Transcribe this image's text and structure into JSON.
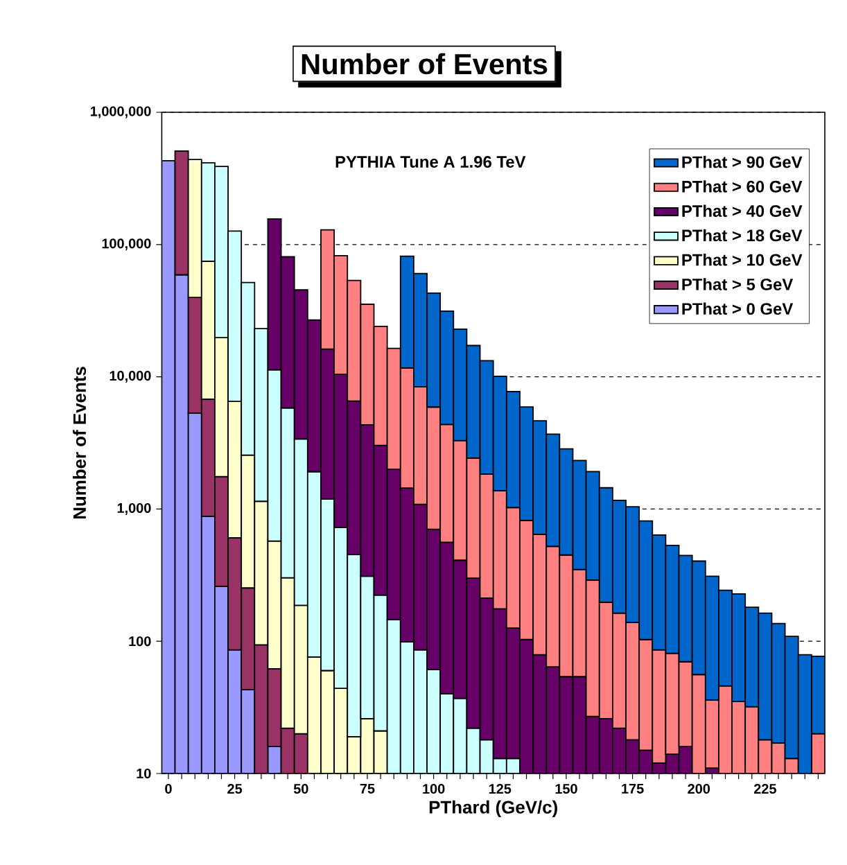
{
  "chart_data": {
    "type": "bar",
    "title": "Number of Events",
    "xlabel": "PThard  (GeV/c)",
    "ylabel": "Number of Events",
    "annotations": [
      "PYTHIA Tune A 1.96 TeV"
    ],
    "categories": [
      "0",
      null,
      null,
      null,
      null,
      "25",
      null,
      null,
      null,
      null,
      "50",
      null,
      null,
      null,
      null,
      "75",
      null,
      null,
      null,
      null,
      "100",
      null,
      null,
      null,
      null,
      "125",
      null,
      null,
      null,
      null,
      "150",
      null,
      null,
      null,
      null,
      "175",
      null,
      null,
      null,
      null,
      "200",
      null,
      null,
      null,
      null,
      "225",
      null,
      null,
      null,
      null
    ],
    "stacked": true,
    "log": true,
    "grid": "y",
    "legend": "top right",
    "ylim": [
      10,
      1000000
    ],
    "yticks": [
      10,
      100,
      {
        "value": 1000,
        "label": "1,000"
      },
      {
        "value": 10000,
        "label": "10,000"
      },
      {
        "value": 100000,
        "label": "100,000"
      },
      {
        "value": 1000000,
        "label": "1,000,000"
      }
    ],
    "series": [
      {
        "name": "PThat > 0 GeV",
        "color": "#9999ff",
        "values": [
          430000,
          59000,
          5300,
          880,
          260,
          86,
          43,
          null,
          16,
          null,
          null,
          null,
          null,
          null,
          null,
          null,
          null,
          null,
          null,
          null,
          null,
          null,
          null,
          null,
          null,
          null,
          null,
          null,
          null,
          null,
          null,
          null,
          null,
          null,
          null,
          null,
          null,
          null,
          null,
          null,
          null,
          null,
          null,
          null,
          null,
          null,
          null,
          null,
          null,
          null
        ]
      },
      {
        "name": "PThat > 5 GeV",
        "color": "#993366",
        "values": [
          null,
          450000,
          34500,
          5900,
          1500,
          520,
          210,
          94,
          46,
          22,
          20,
          null,
          null,
          null,
          null,
          null,
          null,
          null,
          null,
          null,
          null,
          null,
          null,
          null,
          null,
          null,
          null,
          null,
          null,
          null,
          null,
          null,
          null,
          null,
          null,
          null,
          null,
          null,
          null,
          null,
          null,
          null,
          null,
          null,
          null,
          null,
          null,
          null,
          null,
          null
        ]
      },
      {
        "name": "PThat > 10 GeV",
        "color": "#ffffcc",
        "values": [
          null,
          null,
          400000,
          68000,
          18000,
          5900,
          2300,
          1050,
          510,
          280,
          167,
          76,
          60,
          44,
          19,
          26,
          21,
          null,
          null,
          null,
          null,
          null,
          null,
          null,
          null,
          null,
          null,
          null,
          null,
          null,
          null,
          null,
          null,
          null,
          null,
          null,
          null,
          null,
          null,
          null,
          null,
          null,
          null,
          null,
          null,
          null,
          null,
          null,
          null,
          null
        ]
      },
      {
        "name": "PThat > 18 GeV",
        "color": "#ccffff",
        "values": [
          null,
          null,
          null,
          340000,
          370000,
          120000,
          49000,
          22000,
          10700,
          5500,
          3200,
          1840,
          1130,
          680,
          433,
          284,
          202,
          146,
          99,
          86,
          61,
          40,
          37,
          22,
          18,
          13,
          13,
          null,
          null,
          null,
          null,
          null,
          null,
          null,
          null,
          null,
          null,
          null,
          null,
          null,
          null,
          null,
          null,
          null,
          null,
          null,
          null,
          null,
          null,
          null
        ]
      },
      {
        "name": "PThat > 40 GeV",
        "color": "#660066",
        "values": [
          null,
          null,
          null,
          null,
          null,
          null,
          null,
          null,
          145000,
          75000,
          42000,
          25000,
          15000,
          9700,
          6100,
          4020,
          2800,
          1850,
          1340,
          1000,
          642,
          521,
          373,
          278,
          194,
          163,
          113,
          103,
          79,
          64,
          54,
          54,
          27,
          26,
          22,
          18,
          15,
          12,
          14,
          16,
          null,
          11,
          null,
          null,
          null,
          null,
          null,
          null,
          null,
          null
        ]
      },
      {
        "name": "PThat > 60 GeV",
        "color": "#ff8080",
        "values": [
          null,
          null,
          null,
          null,
          null,
          null,
          null,
          null,
          null,
          null,
          null,
          null,
          113000,
          72000,
          47000,
          31000,
          21000,
          14400,
          10200,
          7300,
          5200,
          3800,
          2880,
          2130,
          1630,
          1200,
          900,
          716,
          565,
          458,
          395,
          295,
          263,
          171,
          141,
          121,
          88,
          74,
          67,
          54,
          56,
          25,
          46,
          35,
          32,
          18,
          17,
          13,
          null,
          20
        ]
      },
      {
        "name": "PThat > 90 GeV",
        "color": "#0066cc",
        "values": [
          null,
          null,
          null,
          null,
          null,
          null,
          null,
          null,
          null,
          null,
          null,
          null,
          null,
          null,
          null,
          null,
          null,
          null,
          70000,
          52000,
          37000,
          27000,
          19600,
          14800,
          11400,
          8700,
          6700,
          5100,
          4000,
          3160,
          2400,
          1980,
          1630,
          1250,
          1000,
          900,
          710,
          550,
          450,
          375,
          348,
          274,
          197,
          193,
          149,
          145,
          119,
          96,
          79,
          57
        ]
      }
    ]
  }
}
